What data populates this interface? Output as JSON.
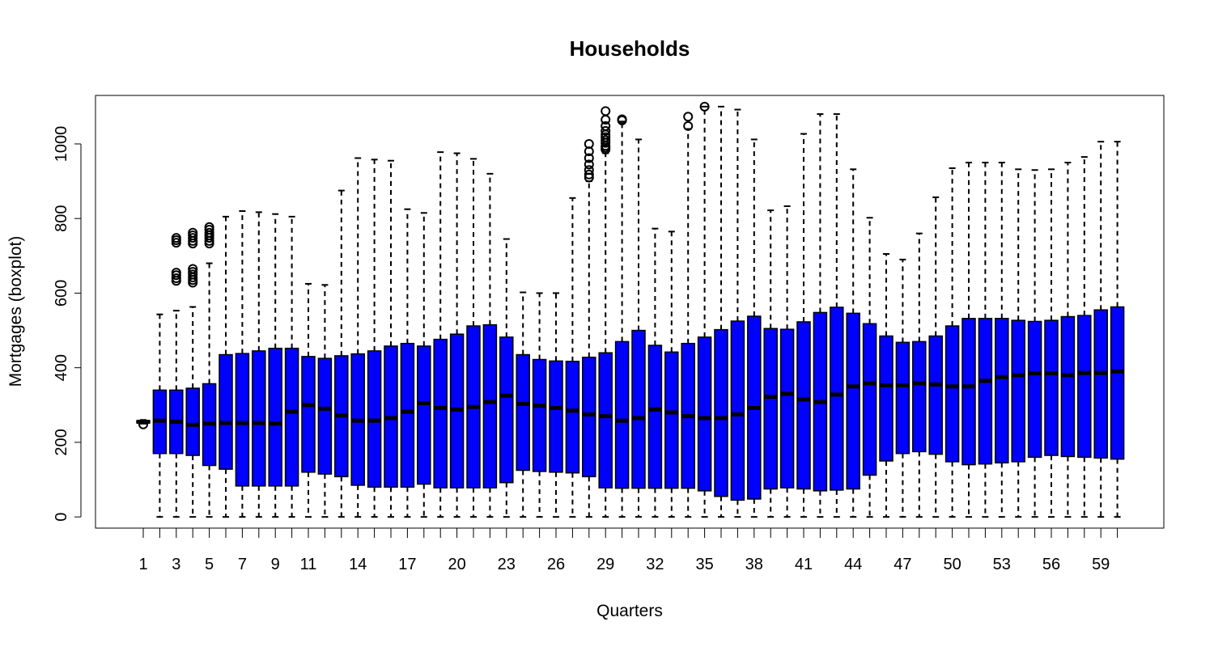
{
  "chart_data": {
    "type": "boxplot",
    "title": "Households",
    "xlabel": "Quarters",
    "ylabel": "Mortgages (boxplot)",
    "ylim": [
      -30,
      1130
    ],
    "y_ticks": [
      0,
      200,
      400,
      600,
      800,
      1000
    ],
    "x_tick_labels": [
      "1",
      "3",
      "5",
      "7",
      "9",
      "11",
      "14",
      "17",
      "20",
      "23",
      "26",
      "29",
      "32",
      "35",
      "38",
      "41",
      "44",
      "47",
      "50",
      "53",
      "56",
      "59"
    ],
    "box_color": "#0000FF",
    "line_color": "#000000",
    "categories": [
      "1",
      "2",
      "3",
      "4",
      "5",
      "6",
      "7",
      "8",
      "9",
      "10",
      "11",
      "12",
      "13",
      "14",
      "15",
      "16",
      "17",
      "18",
      "19",
      "20",
      "21",
      "22",
      "23",
      "24",
      "25",
      "26",
      "27",
      "28",
      "29",
      "30",
      "31",
      "32",
      "33",
      "34",
      "35",
      "36",
      "37",
      "38",
      "39",
      "40",
      "41",
      "42",
      "43",
      "44",
      "45",
      "46",
      "47",
      "48",
      "49",
      "50",
      "51",
      "52",
      "53",
      "54",
      "55",
      "56",
      "57",
      "58",
      "59",
      "60"
    ],
    "boxes": [
      {
        "min": 250,
        "q1": 252,
        "median": 255,
        "q3": 258,
        "max": 260,
        "outliers": [
          248
        ]
      },
      {
        "min": 0,
        "q1": 170,
        "median": 258,
        "q3": 340,
        "max": 543,
        "outliers": []
      },
      {
        "min": 0,
        "q1": 170,
        "median": 255,
        "q3": 340,
        "max": 553,
        "outliers": [
          633,
          640,
          648,
          655,
          735,
          742,
          748
        ]
      },
      {
        "min": 0,
        "q1": 165,
        "median": 247,
        "q3": 345,
        "max": 563,
        "outliers": [
          628,
          635,
          642,
          650,
          657,
          665,
          733,
          740,
          748,
          755,
          762
        ]
      },
      {
        "min": 0,
        "q1": 138,
        "median": 250,
        "q3": 357,
        "max": 680,
        "outliers": [
          733,
          740,
          748,
          755,
          762,
          770,
          777
        ]
      },
      {
        "min": 0,
        "q1": 128,
        "median": 252,
        "q3": 435,
        "max": 805,
        "outliers": []
      },
      {
        "min": 0,
        "q1": 83,
        "median": 252,
        "q3": 438,
        "max": 820,
        "outliers": []
      },
      {
        "min": 0,
        "q1": 83,
        "median": 252,
        "q3": 445,
        "max": 817,
        "outliers": []
      },
      {
        "min": 0,
        "q1": 83,
        "median": 250,
        "q3": 452,
        "max": 812,
        "outliers": []
      },
      {
        "min": 0,
        "q1": 83,
        "median": 282,
        "q3": 452,
        "max": 805,
        "outliers": []
      },
      {
        "min": 0,
        "q1": 120,
        "median": 300,
        "q3": 430,
        "max": 625,
        "outliers": []
      },
      {
        "min": 0,
        "q1": 115,
        "median": 290,
        "q3": 425,
        "max": 622,
        "outliers": []
      },
      {
        "min": 0,
        "q1": 108,
        "median": 272,
        "q3": 432,
        "max": 875,
        "outliers": []
      },
      {
        "min": 0,
        "q1": 85,
        "median": 258,
        "q3": 437,
        "max": 962,
        "outliers": []
      },
      {
        "min": 0,
        "q1": 80,
        "median": 258,
        "q3": 445,
        "max": 958,
        "outliers": []
      },
      {
        "min": 0,
        "q1": 80,
        "median": 265,
        "q3": 458,
        "max": 955,
        "outliers": []
      },
      {
        "min": 0,
        "q1": 80,
        "median": 282,
        "q3": 465,
        "max": 825,
        "outliers": []
      },
      {
        "min": 0,
        "q1": 88,
        "median": 305,
        "q3": 458,
        "max": 815,
        "outliers": []
      },
      {
        "min": 0,
        "q1": 78,
        "median": 292,
        "q3": 476,
        "max": 978,
        "outliers": []
      },
      {
        "min": 0,
        "q1": 78,
        "median": 288,
        "q3": 490,
        "max": 975,
        "outliers": []
      },
      {
        "min": 0,
        "q1": 78,
        "median": 295,
        "q3": 512,
        "max": 960,
        "outliers": []
      },
      {
        "min": 0,
        "q1": 78,
        "median": 308,
        "q3": 515,
        "max": 920,
        "outliers": []
      },
      {
        "min": 0,
        "q1": 92,
        "median": 325,
        "q3": 482,
        "max": 745,
        "outliers": []
      },
      {
        "min": 0,
        "q1": 125,
        "median": 303,
        "q3": 435,
        "max": 602,
        "outliers": []
      },
      {
        "min": 0,
        "q1": 122,
        "median": 298,
        "q3": 422,
        "max": 600,
        "outliers": []
      },
      {
        "min": 0,
        "q1": 120,
        "median": 292,
        "q3": 418,
        "max": 600,
        "outliers": []
      },
      {
        "min": 0,
        "q1": 118,
        "median": 285,
        "q3": 417,
        "max": 855,
        "outliers": []
      },
      {
        "min": 0,
        "q1": 108,
        "median": 275,
        "q3": 428,
        "max": 900,
        "outliers": [
          910,
          918,
          930,
          945,
          962,
          980,
          1000
        ]
      },
      {
        "min": 0,
        "q1": 78,
        "median": 270,
        "q3": 440,
        "max": 975,
        "outliers": [
          985,
          990,
          995,
          1003,
          1010,
          1018,
          1025,
          1035,
          1048,
          1065,
          1088
        ]
      },
      {
        "min": 0,
        "q1": 77,
        "median": 258,
        "q3": 470,
        "max": 1060,
        "outliers": [
          1063,
          1066
        ]
      },
      {
        "min": 0,
        "q1": 77,
        "median": 265,
        "q3": 500,
        "max": 1012,
        "outliers": []
      },
      {
        "min": 0,
        "q1": 77,
        "median": 288,
        "q3": 460,
        "max": 773,
        "outliers": []
      },
      {
        "min": 0,
        "q1": 77,
        "median": 280,
        "q3": 442,
        "max": 765,
        "outliers": []
      },
      {
        "min": 0,
        "q1": 77,
        "median": 270,
        "q3": 465,
        "max": 1040,
        "outliers": [
          1048,
          1073
        ]
      },
      {
        "min": 0,
        "q1": 70,
        "median": 265,
        "q3": 482,
        "max": 1100,
        "outliers": [
          1100
        ]
      },
      {
        "min": 0,
        "q1": 55,
        "median": 265,
        "q3": 502,
        "max": 1100,
        "outliers": []
      },
      {
        "min": 0,
        "q1": 45,
        "median": 275,
        "q3": 525,
        "max": 1092,
        "outliers": []
      },
      {
        "min": 0,
        "q1": 48,
        "median": 292,
        "q3": 538,
        "max": 1012,
        "outliers": []
      },
      {
        "min": 0,
        "q1": 75,
        "median": 322,
        "q3": 505,
        "max": 822,
        "outliers": []
      },
      {
        "min": 0,
        "q1": 78,
        "median": 330,
        "q3": 503,
        "max": 833,
        "outliers": []
      },
      {
        "min": 0,
        "q1": 75,
        "median": 315,
        "q3": 523,
        "max": 1027,
        "outliers": []
      },
      {
        "min": 0,
        "q1": 70,
        "median": 308,
        "q3": 548,
        "max": 1080,
        "outliers": []
      },
      {
        "min": 0,
        "q1": 72,
        "median": 328,
        "q3": 562,
        "max": 1080,
        "outliers": []
      },
      {
        "min": 0,
        "q1": 75,
        "median": 350,
        "q3": 546,
        "max": 932,
        "outliers": []
      },
      {
        "min": 0,
        "q1": 112,
        "median": 358,
        "q3": 518,
        "max": 802,
        "outliers": []
      },
      {
        "min": 0,
        "q1": 150,
        "median": 353,
        "q3": 485,
        "max": 705,
        "outliers": []
      },
      {
        "min": 0,
        "q1": 170,
        "median": 353,
        "q3": 468,
        "max": 690,
        "outliers": []
      },
      {
        "min": 0,
        "q1": 175,
        "median": 358,
        "q3": 470,
        "max": 760,
        "outliers": []
      },
      {
        "min": 0,
        "q1": 168,
        "median": 355,
        "q3": 485,
        "max": 857,
        "outliers": []
      },
      {
        "min": 0,
        "q1": 148,
        "median": 350,
        "q3": 512,
        "max": 935,
        "outliers": []
      },
      {
        "min": 0,
        "q1": 140,
        "median": 350,
        "q3": 532,
        "max": 950,
        "outliers": []
      },
      {
        "min": 0,
        "q1": 142,
        "median": 365,
        "q3": 532,
        "max": 950,
        "outliers": []
      },
      {
        "min": 0,
        "q1": 145,
        "median": 375,
        "q3": 532,
        "max": 950,
        "outliers": []
      },
      {
        "min": 0,
        "q1": 148,
        "median": 380,
        "q3": 527,
        "max": 932,
        "outliers": []
      },
      {
        "min": 0,
        "q1": 160,
        "median": 385,
        "q3": 524,
        "max": 930,
        "outliers": []
      },
      {
        "min": 0,
        "q1": 165,
        "median": 385,
        "q3": 527,
        "max": 932,
        "outliers": []
      },
      {
        "min": 0,
        "q1": 162,
        "median": 380,
        "q3": 537,
        "max": 950,
        "outliers": []
      },
      {
        "min": 0,
        "q1": 160,
        "median": 386,
        "q3": 540,
        "max": 965,
        "outliers": []
      },
      {
        "min": 0,
        "q1": 158,
        "median": 386,
        "q3": 555,
        "max": 1006,
        "outliers": []
      },
      {
        "min": 0,
        "q1": 155,
        "median": 390,
        "q3": 563,
        "max": 1006,
        "outliers": []
      }
    ]
  }
}
